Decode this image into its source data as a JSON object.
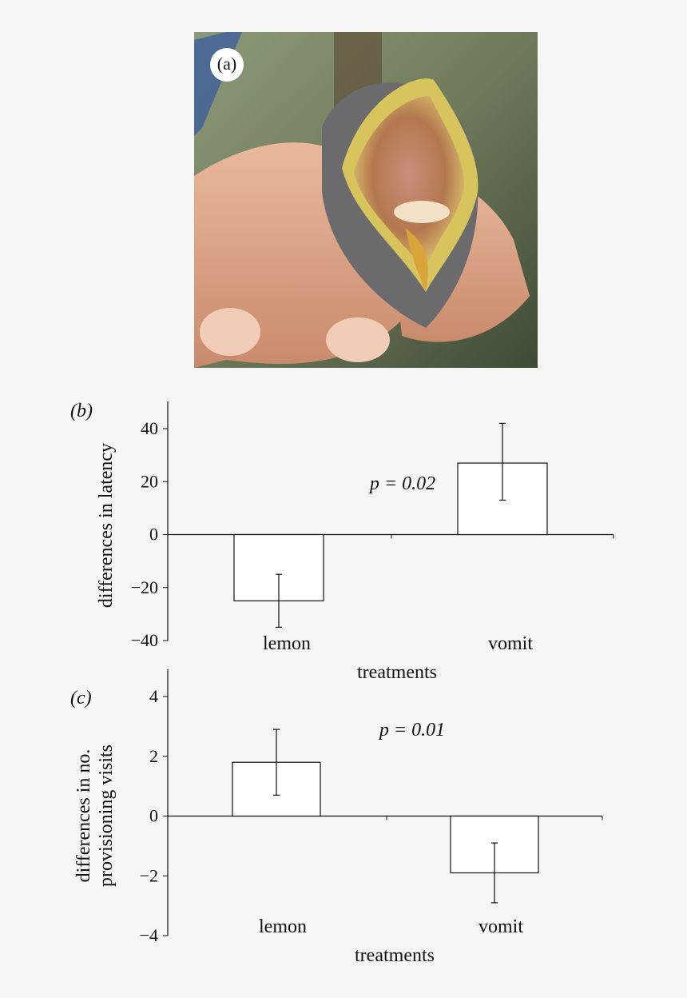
{
  "figure": {
    "panel_a_label": "(a)"
  },
  "colors": {
    "background": "#f6f6f6",
    "bar_fill": "#ffffff",
    "ink": "#111111"
  },
  "chart_data": [
    {
      "type": "bar",
      "panel_label": "(b)",
      "categories": [
        "lemon",
        "vomit"
      ],
      "values": [
        -25,
        27
      ],
      "error_upper": [
        -15,
        42
      ],
      "error_lower": [
        -35,
        13
      ],
      "ylabel": "differences in latency",
      "xlabel": "treatments",
      "ylim": [
        -40,
        40
      ],
      "yticks": [
        -40,
        -20,
        0,
        20,
        40
      ],
      "ytick_labels": [
        "−40",
        "−20",
        "0",
        "20",
        "40"
      ],
      "annotation": "p = 0.02"
    },
    {
      "type": "bar",
      "panel_label": "(c)",
      "categories": [
        "lemon",
        "vomit"
      ],
      "values": [
        1.8,
        -1.9
      ],
      "error_upper": [
        2.9,
        -0.9
      ],
      "error_lower": [
        0.7,
        -2.9
      ],
      "ylabel": [
        "differences in no.",
        "provisioning visits"
      ],
      "xlabel": "treatments",
      "ylim": [
        -4,
        4
      ],
      "yticks": [
        -4,
        -2,
        0,
        2,
        4
      ],
      "ytick_labels": [
        "−4",
        "−2",
        "0",
        "2",
        "4"
      ],
      "annotation": "p = 0.01"
    }
  ]
}
